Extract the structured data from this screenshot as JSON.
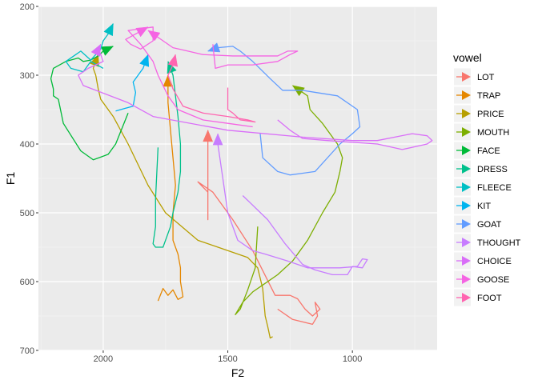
{
  "chart_data": {
    "type": "line",
    "xlabel": "F2",
    "ylabel": "F1",
    "x_reversed": true,
    "y_reversed": true,
    "xlim": [
      2260,
      660
    ],
    "ylim": [
      200,
      700
    ],
    "x_ticks": [
      2000,
      1500,
      1000
    ],
    "x_tick_labels": [
      "2000",
      "1500",
      "1000"
    ],
    "y_ticks": [
      200,
      300,
      400,
      500,
      600,
      700
    ],
    "y_tick_labels": [
      "200",
      "300",
      "400",
      "500",
      "600",
      "700"
    ],
    "grid": true,
    "panel_background": "#ebebeb",
    "legend": {
      "title": "vowel",
      "position": "right"
    },
    "series": [
      {
        "name": "LOT",
        "color": "#F8766D",
        "points": [
          [
            1300,
            640
          ],
          [
            1240,
            655
          ],
          [
            1160,
            662
          ],
          [
            1140,
            650
          ],
          [
            1150,
            630
          ],
          [
            1130,
            640
          ],
          [
            1160,
            650
          ],
          [
            1190,
            640
          ],
          [
            1220,
            625
          ],
          [
            1250,
            620
          ],
          [
            1310,
            620
          ],
          [
            1400,
            555
          ],
          [
            1480,
            510
          ],
          [
            1560,
            470
          ],
          [
            1620,
            455
          ],
          [
            1580,
            470
          ],
          [
            1580,
            510
          ],
          [
            1580,
            380
          ]
        ]
      },
      {
        "name": "TRAP",
        "color": "#E58700",
        "points": [
          [
            1780,
            628
          ],
          [
            1760,
            610
          ],
          [
            1740,
            620
          ],
          [
            1720,
            612
          ],
          [
            1700,
            626
          ],
          [
            1680,
            622
          ],
          [
            1690,
            600
          ],
          [
            1690,
            580
          ],
          [
            1700,
            560
          ],
          [
            1720,
            540
          ],
          [
            1720,
            500
          ],
          [
            1710,
            460
          ],
          [
            1720,
            420
          ],
          [
            1730,
            380
          ],
          [
            1740,
            340
          ],
          [
            1740,
            300
          ]
        ]
      },
      {
        "name": "PRICE",
        "color": "#B79F00",
        "points": [
          [
            1320,
            680
          ],
          [
            1330,
            682
          ],
          [
            1340,
            665
          ],
          [
            1350,
            650
          ],
          [
            1360,
            610
          ],
          [
            1380,
            580
          ],
          [
            1420,
            565
          ],
          [
            1500,
            555
          ],
          [
            1620,
            540
          ],
          [
            1750,
            500
          ],
          [
            1820,
            460
          ],
          [
            1900,
            400
          ],
          [
            1960,
            360
          ],
          [
            2010,
            335
          ],
          [
            2020,
            320
          ],
          [
            2030,
            300
          ],
          [
            2040,
            290
          ],
          [
            2030,
            280
          ],
          [
            2020,
            270
          ]
        ]
      },
      {
        "name": "MOUTH",
        "color": "#7CAE00",
        "points": [
          [
            1380,
            520
          ],
          [
            1390,
            580
          ],
          [
            1420,
            612
          ],
          [
            1450,
            640
          ],
          [
            1470,
            648
          ],
          [
            1440,
            630
          ],
          [
            1400,
            615
          ],
          [
            1360,
            605
          ],
          [
            1300,
            590
          ],
          [
            1240,
            570
          ],
          [
            1180,
            540
          ],
          [
            1120,
            500
          ],
          [
            1070,
            470
          ],
          [
            1050,
            440
          ],
          [
            1040,
            420
          ],
          [
            1060,
            400
          ],
          [
            1120,
            370
          ],
          [
            1170,
            350
          ],
          [
            1180,
            330
          ],
          [
            1240,
            315
          ]
        ]
      },
      {
        "name": "FACE",
        "color": "#00BA38",
        "points": [
          [
            1900,
            355
          ],
          [
            1950,
            400
          ],
          [
            1980,
            415
          ],
          [
            2040,
            423
          ],
          [
            2090,
            410
          ],
          [
            2160,
            370
          ],
          [
            2180,
            335
          ],
          [
            2200,
            330
          ],
          [
            2200,
            320
          ],
          [
            2210,
            305
          ],
          [
            2200,
            290
          ],
          [
            2150,
            280
          ],
          [
            2100,
            275
          ],
          [
            2080,
            280
          ],
          [
            2050,
            278
          ],
          [
            2020,
            272
          ],
          [
            2000,
            265
          ],
          [
            1960,
            258
          ]
        ]
      },
      {
        "name": "DRESS",
        "color": "#00C08B",
        "points": [
          [
            1780,
            405
          ],
          [
            1790,
            480
          ],
          [
            1790,
            520
          ],
          [
            1800,
            545
          ],
          [
            1790,
            550
          ],
          [
            1760,
            550
          ],
          [
            1730,
            520
          ],
          [
            1720,
            500
          ],
          [
            1700,
            470
          ],
          [
            1690,
            440
          ],
          [
            1690,
            400
          ],
          [
            1700,
            360
          ],
          [
            1710,
            330
          ],
          [
            1720,
            300
          ],
          [
            1740,
            280
          ]
        ]
      },
      {
        "name": "FLEECE",
        "color": "#00BFC4",
        "points": [
          [
            2000,
            290
          ],
          [
            2050,
            280
          ],
          [
            2080,
            295
          ],
          [
            2130,
            290
          ],
          [
            2150,
            280
          ],
          [
            2110,
            270
          ],
          [
            2090,
            265
          ],
          [
            2050,
            278
          ],
          [
            2010,
            262
          ],
          [
            2000,
            250
          ],
          [
            1980,
            240
          ],
          [
            1960,
            225
          ]
        ]
      },
      {
        "name": "KIT",
        "color": "#00B4EF",
        "points": [
          [
            1950,
            352
          ],
          [
            1910,
            348
          ],
          [
            1880,
            345
          ],
          [
            1870,
            325
          ],
          [
            1880,
            310
          ],
          [
            1840,
            290
          ],
          [
            1820,
            270
          ]
        ]
      },
      {
        "name": "GOAT",
        "color": "#619CFF",
        "points": [
          [
            1370,
            385
          ],
          [
            1360,
            420
          ],
          [
            1300,
            440
          ],
          [
            1250,
            445
          ],
          [
            1150,
            440
          ],
          [
            1050,
            400
          ],
          [
            1000,
            385
          ],
          [
            970,
            375
          ],
          [
            980,
            350
          ],
          [
            1060,
            330
          ],
          [
            1200,
            322
          ],
          [
            1280,
            322
          ],
          [
            1330,
            305
          ],
          [
            1400,
            280
          ],
          [
            1450,
            265
          ],
          [
            1480,
            258
          ],
          [
            1540,
            260
          ],
          [
            1580,
            265
          ]
        ]
      },
      {
        "name": "THOUGHT",
        "color": "#C77CFF",
        "points": [
          [
            1440,
            475
          ],
          [
            1340,
            510
          ],
          [
            1270,
            545
          ],
          [
            1200,
            575
          ],
          [
            1150,
            583
          ],
          [
            1080,
            590
          ],
          [
            1020,
            590
          ],
          [
            1000,
            578
          ],
          [
            960,
            580
          ],
          [
            940,
            568
          ],
          [
            960,
            567
          ],
          [
            980,
            578
          ],
          [
            1050,
            580
          ],
          [
            1100,
            580
          ],
          [
            1180,
            580
          ],
          [
            1260,
            570
          ],
          [
            1350,
            560
          ],
          [
            1400,
            555
          ],
          [
            1460,
            540
          ],
          [
            1500,
            500
          ],
          [
            1520,
            450
          ],
          [
            1540,
            400
          ],
          [
            1540,
            385
          ]
        ]
      },
      {
        "name": "CHOICE",
        "color": "#D96EF8",
        "points": [
          [
            1300,
            365
          ],
          [
            1250,
            380
          ],
          [
            1200,
            392
          ],
          [
            1100,
            395
          ],
          [
            900,
            400
          ],
          [
            800,
            408
          ],
          [
            700,
            400
          ],
          [
            680,
            395
          ],
          [
            700,
            388
          ],
          [
            760,
            385
          ],
          [
            900,
            395
          ],
          [
            1000,
            395
          ],
          [
            1200,
            390
          ],
          [
            1500,
            380
          ],
          [
            1800,
            360
          ],
          [
            1900,
            340
          ],
          [
            2080,
            315
          ],
          [
            2100,
            300
          ],
          [
            2060,
            290
          ],
          [
            2030,
            285
          ],
          [
            2000,
            280
          ],
          [
            2010,
            270
          ],
          [
            2020,
            262
          ],
          [
            2010,
            255
          ]
        ]
      },
      {
        "name": "GOOSE",
        "color": "#F564E3",
        "points": [
          [
            1400,
            375
          ],
          [
            1500,
            370
          ],
          [
            1600,
            365
          ],
          [
            1700,
            350
          ],
          [
            1740,
            330
          ],
          [
            1780,
            300
          ],
          [
            1800,
            280
          ],
          [
            1850,
            255
          ],
          [
            1900,
            235
          ],
          [
            1800,
            230
          ],
          [
            1800,
            250
          ],
          [
            1850,
            262
          ],
          [
            1890,
            255
          ],
          [
            1910,
            248
          ],
          [
            1870,
            240
          ],
          [
            1820,
            230
          ]
        ]
      },
      {
        "name": "GOOSE2",
        "color": "#F564E3",
        "in_legend": false,
        "points": [
          [
            1560,
            255
          ],
          [
            1550,
            290
          ],
          [
            1500,
            285
          ],
          [
            1400,
            285
          ],
          [
            1300,
            280
          ],
          [
            1250,
            270
          ],
          [
            1220,
            265
          ],
          [
            1260,
            265
          ],
          [
            1300,
            272
          ],
          [
            1400,
            272
          ],
          [
            1480,
            272
          ],
          [
            1600,
            270
          ],
          [
            1660,
            265
          ],
          [
            1720,
            260
          ],
          [
            1760,
            250
          ],
          [
            1820,
            235
          ]
        ]
      },
      {
        "name": "FOOT",
        "color": "#FF64B0",
        "points": [
          [
            1500,
            318
          ],
          [
            1500,
            350
          ],
          [
            1480,
            355
          ],
          [
            1450,
            365
          ],
          [
            1390,
            368
          ],
          [
            1420,
            365
          ],
          [
            1500,
            360
          ],
          [
            1600,
            355
          ],
          [
            1680,
            345
          ],
          [
            1720,
            320
          ],
          [
            1740,
            300
          ],
          [
            1720,
            285
          ],
          [
            1710,
            270
          ]
        ]
      }
    ]
  }
}
